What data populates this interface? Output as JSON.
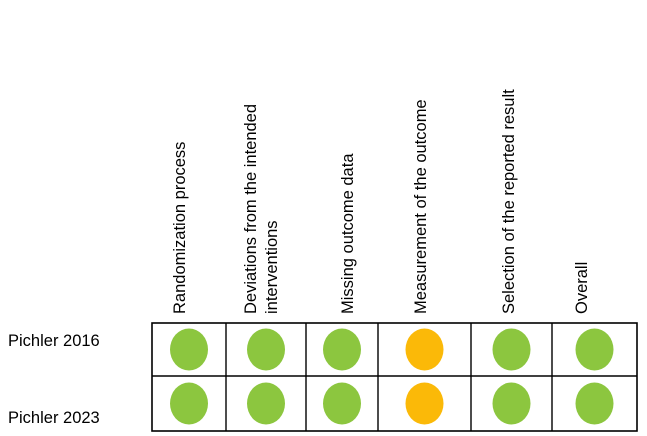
{
  "chart_data": {
    "type": "table",
    "domains": [
      "Randomization process",
      "Deviations from the intended\ninterventions",
      "Missing outcome data",
      "Measurement of the outcome",
      "Selection of the reported result",
      "Overall"
    ],
    "studies": [
      "Pichler 2016",
      "Pichler 2023"
    ],
    "judgements": [
      [
        "low",
        "low",
        "low",
        "some",
        "low",
        "low"
      ],
      [
        "low",
        "low",
        "low",
        "some",
        "low",
        "low"
      ]
    ],
    "colors": {
      "low": "#8CC63F",
      "some": "#FBB908",
      "grid": "#000000"
    }
  }
}
